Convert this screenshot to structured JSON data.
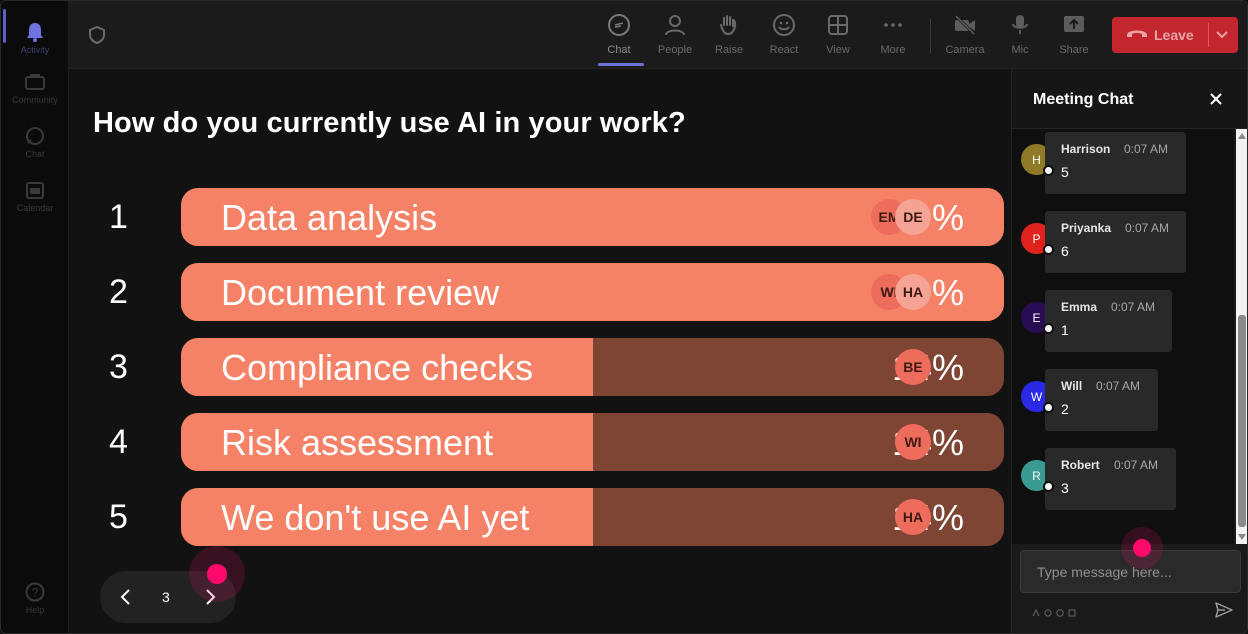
{
  "rail": {
    "items": [
      {
        "label": "Activity",
        "icon": "bell-icon",
        "active": true
      },
      {
        "label": "Community",
        "icon": "community-icon"
      },
      {
        "label": "Chat",
        "icon": "chat-icon"
      },
      {
        "label": "Calendar",
        "icon": "calendar-icon"
      }
    ],
    "help": {
      "label": "Help",
      "icon": "help-icon"
    }
  },
  "toolbar": {
    "chat": "Chat",
    "people": "People",
    "raise": "Raise",
    "react": "React",
    "view": "View",
    "more": "More",
    "camera": "Camera",
    "mic": "Mic",
    "share": "Share",
    "leave": "Leave"
  },
  "poll": {
    "question": "How do you currently use AI in your work?",
    "page": "3",
    "options": [
      {
        "num": "1",
        "label": "Data analysis",
        "pct": "29%",
        "value": 29,
        "voters": [
          "EM",
          "DE"
        ]
      },
      {
        "num": "2",
        "label": "Document review",
        "pct": "29%",
        "value": 29,
        "voters": [
          "WI",
          "HA"
        ]
      },
      {
        "num": "3",
        "label": "Compliance checks",
        "pct": "14%",
        "value": 14,
        "voters": [
          "BE"
        ]
      },
      {
        "num": "4",
        "label": "Risk assessment",
        "pct": "14%",
        "value": 14,
        "voters": [
          "WI"
        ]
      },
      {
        "num": "5",
        "label": "We don't use AI yet",
        "pct": "14%",
        "value": 14,
        "voters": [
          "HA"
        ]
      }
    ]
  },
  "chat": {
    "title": "Meeting Chat",
    "messages": [
      {
        "initial": "H",
        "name": "Harrison",
        "time": "0:07 AM",
        "text": "5",
        "color": "#8f7a28"
      },
      {
        "initial": "P",
        "name": "Priyanka",
        "time": "0:07 AM",
        "text": "6",
        "color": "#e0221e"
      },
      {
        "initial": "E",
        "name": "Emma",
        "time": "0:07 AM",
        "text": "1",
        "color": "#2a0c55"
      },
      {
        "initial": "W",
        "name": "Will",
        "time": "0:07 AM",
        "text": "2",
        "color": "#2a2ae6"
      },
      {
        "initial": "R",
        "name": "Robert",
        "time": "0:07 AM",
        "text": "3",
        "color": "#3a9b93"
      }
    ],
    "compose_placeholder": "Type message here..."
  },
  "colors": {
    "bar_fill": "#f58266",
    "bar_track": "#7e4535",
    "leave": "#c4262e",
    "accent": "#6d73d6",
    "cursor": "#ff0a6c"
  }
}
